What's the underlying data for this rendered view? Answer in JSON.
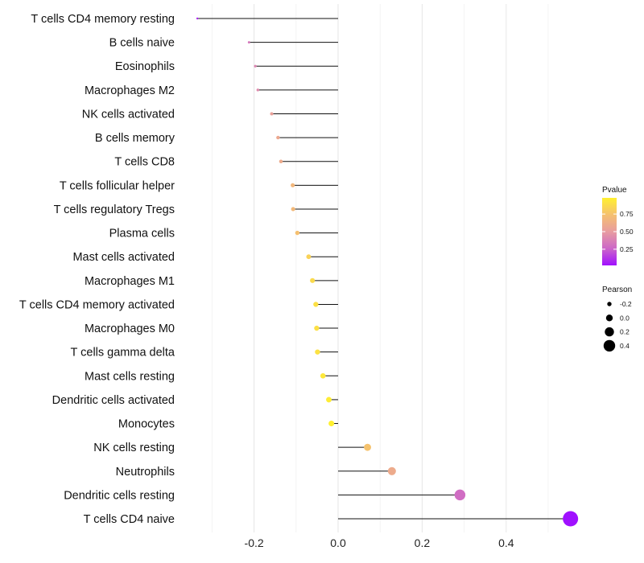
{
  "chart_data": {
    "type": "lollipop",
    "title": "",
    "xlabel": "",
    "ylabel": "",
    "xlim": [
      -0.3,
      0.55
    ],
    "x_ticks": [
      -0.2,
      0.0,
      0.2,
      0.4
    ],
    "x_tick_labels": [
      "-0.2",
      "0.0",
      "0.2",
      "0.4"
    ],
    "baseline": 0,
    "grid": "vertical",
    "categories": [
      "T cells CD4 memory resting",
      "B cells naive",
      "Eosinophils",
      "Macrophages M2",
      "NK cells activated",
      "B cells memory",
      "T cells CD8",
      "T cells follicular helper",
      "T cells regulatory  Tregs ",
      "Plasma cells",
      "Mast cells activated",
      "Macrophages M1",
      "T cells CD4 memory activated",
      "Macrophages M0",
      "T cells gamma delta",
      "Mast cells resting",
      "Dendritic cells activated",
      "Monocytes",
      "NK cells resting",
      "Neutrophils",
      "Dendritic cells resting",
      "T cells CD4 naive"
    ],
    "pearson": [
      -0.335,
      -0.212,
      -0.197,
      -0.191,
      -0.158,
      -0.143,
      -0.136,
      -0.108,
      -0.107,
      -0.097,
      -0.07,
      -0.061,
      -0.053,
      -0.051,
      -0.049,
      -0.036,
      -0.022,
      -0.016,
      0.07,
      0.128,
      0.29,
      0.553
    ],
    "pvalue": [
      0.08,
      0.34,
      0.4,
      0.42,
      0.53,
      0.58,
      0.6,
      0.68,
      0.69,
      0.74,
      0.83,
      0.87,
      0.9,
      0.9,
      0.91,
      0.94,
      0.96,
      0.98,
      0.75,
      0.6,
      0.29,
      0.02
    ],
    "color_legend": {
      "title": "Pvalue",
      "ticks": [
        0.25,
        0.5,
        0.75
      ],
      "tick_labels": [
        "0.25",
        "0.50",
        "0.75"
      ],
      "range": [
        0.02,
        0.98
      ],
      "colors": [
        "#A010FF",
        "#CC66C8",
        "#E89CA0",
        "#F5C070",
        "#FFF030"
      ]
    },
    "size_legend": {
      "title": "Pearson",
      "values": [
        -0.2,
        0.0,
        0.2,
        0.4
      ],
      "labels": [
        "-0.2",
        "0.0",
        "0.2",
        "0.4"
      ]
    }
  }
}
